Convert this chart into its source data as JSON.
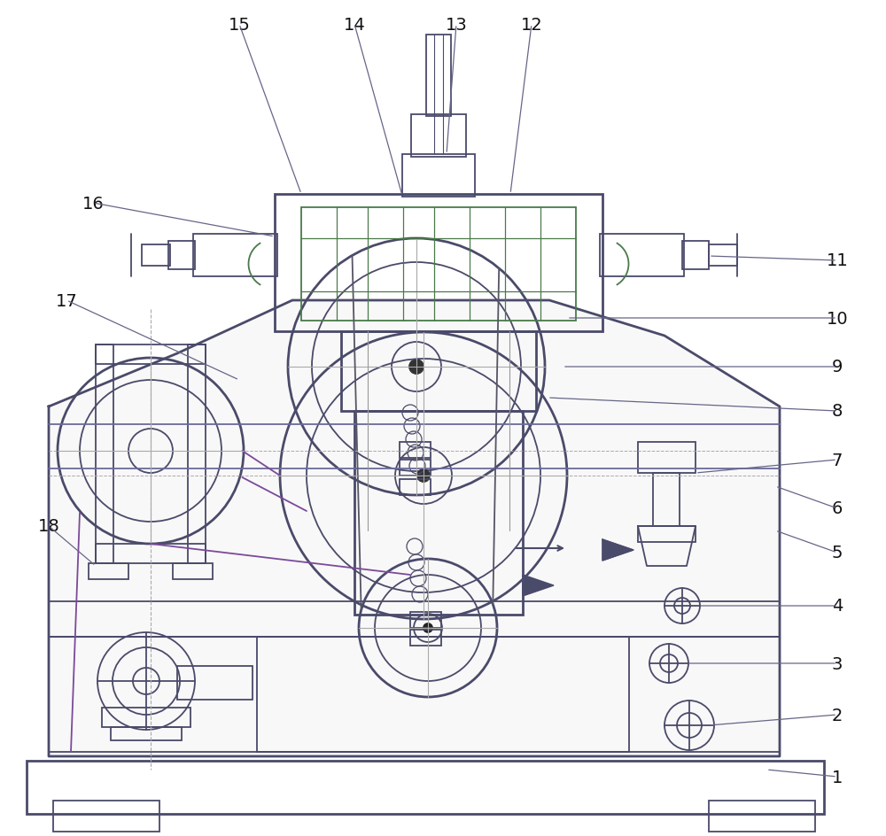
{
  "bg_color": "#ffffff",
  "lc": "#4a4a6a",
  "lc2": "#6a6a9a",
  "lc_green": "#4a7a4a",
  "lc_purple": "#7a4a9a",
  "label_color": "#111111",
  "label_fontsize": 14,
  "leader_color": "#666688"
}
